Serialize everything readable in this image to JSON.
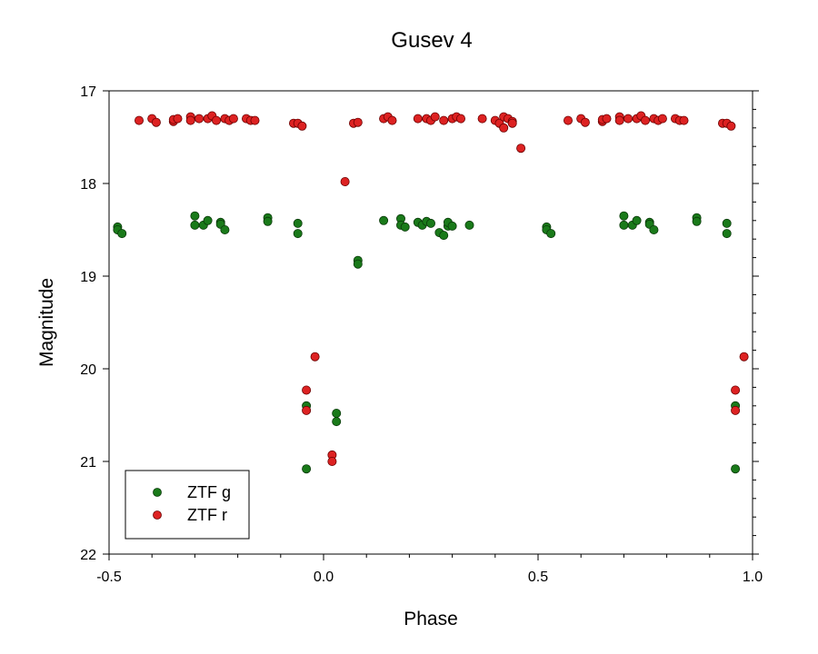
{
  "chart_data": {
    "type": "scatter",
    "title": "Gusev 4",
    "xlabel": "Phase",
    "ylabel": "Magnitude",
    "xlim": [
      -0.5,
      1.0
    ],
    "ylim": [
      22,
      17
    ],
    "y_inverted": true,
    "grid": false,
    "legend_position": "bottom-left",
    "x_ticks": [
      -0.5,
      0.0,
      0.5,
      1.0
    ],
    "x_tick_labels": [
      "-0.5",
      "0.0",
      "0.5",
      "1.0"
    ],
    "y_ticks": [
      17,
      18,
      19,
      20,
      21,
      22
    ],
    "y_tick_labels": [
      "17",
      "18",
      "19",
      "20",
      "21",
      "22"
    ],
    "series": [
      {
        "name": "ZTF g",
        "color": "#1a7a1a",
        "points": [
          [
            -0.48,
            18.47
          ],
          [
            -0.48,
            18.5
          ],
          [
            -0.47,
            18.54
          ],
          [
            -0.3,
            18.35
          ],
          [
            -0.3,
            18.45
          ],
          [
            -0.28,
            18.45
          ],
          [
            -0.27,
            18.4
          ],
          [
            -0.24,
            18.42
          ],
          [
            -0.24,
            18.44
          ],
          [
            -0.23,
            18.5
          ],
          [
            -0.13,
            18.37
          ],
          [
            -0.13,
            18.41
          ],
          [
            -0.06,
            18.43
          ],
          [
            -0.06,
            18.54
          ],
          [
            -0.04,
            20.4
          ],
          [
            -0.04,
            21.08
          ],
          [
            0.03,
            20.48
          ],
          [
            0.03,
            20.57
          ],
          [
            0.08,
            18.83
          ],
          [
            0.08,
            18.87
          ],
          [
            0.14,
            18.4
          ],
          [
            0.18,
            18.38
          ],
          [
            0.18,
            18.45
          ],
          [
            0.19,
            18.47
          ],
          [
            0.22,
            18.42
          ],
          [
            0.23,
            18.45
          ],
          [
            0.24,
            18.41
          ],
          [
            0.25,
            18.43
          ],
          [
            0.27,
            18.53
          ],
          [
            0.28,
            18.56
          ],
          [
            0.29,
            18.46
          ],
          [
            0.29,
            18.42
          ],
          [
            0.3,
            18.46
          ],
          [
            0.34,
            18.45
          ],
          [
            0.52,
            18.47
          ],
          [
            0.52,
            18.5
          ],
          [
            0.53,
            18.54
          ],
          [
            0.7,
            18.35
          ],
          [
            0.7,
            18.45
          ],
          [
            0.72,
            18.45
          ],
          [
            0.73,
            18.4
          ],
          [
            0.76,
            18.42
          ],
          [
            0.76,
            18.44
          ],
          [
            0.77,
            18.5
          ],
          [
            0.87,
            18.37
          ],
          [
            0.87,
            18.41
          ],
          [
            0.94,
            18.43
          ],
          [
            0.94,
            18.54
          ],
          [
            0.96,
            20.4
          ],
          [
            0.96,
            21.08
          ]
        ]
      },
      {
        "name": "ZTF r",
        "color": "#dd2222",
        "points": [
          [
            -0.43,
            17.32
          ],
          [
            -0.4,
            17.3
          ],
          [
            -0.39,
            17.34
          ],
          [
            -0.35,
            17.33
          ],
          [
            -0.35,
            17.31
          ],
          [
            -0.34,
            17.3
          ],
          [
            -0.31,
            17.28
          ],
          [
            -0.31,
            17.32
          ],
          [
            -0.29,
            17.3
          ],
          [
            -0.27,
            17.3
          ],
          [
            -0.26,
            17.27
          ],
          [
            -0.25,
            17.32
          ],
          [
            -0.23,
            17.3
          ],
          [
            -0.22,
            17.32
          ],
          [
            -0.21,
            17.3
          ],
          [
            -0.18,
            17.3
          ],
          [
            -0.17,
            17.32
          ],
          [
            -0.16,
            17.32
          ],
          [
            -0.07,
            17.35
          ],
          [
            -0.06,
            17.35
          ],
          [
            -0.05,
            17.38
          ],
          [
            -0.02,
            19.87
          ],
          [
            -0.04,
            20.23
          ],
          [
            -0.04,
            20.45
          ],
          [
            0.02,
            20.93
          ],
          [
            0.02,
            21.0
          ],
          [
            0.05,
            17.98
          ],
          [
            0.07,
            17.35
          ],
          [
            0.08,
            17.34
          ],
          [
            0.14,
            17.3
          ],
          [
            0.15,
            17.28
          ],
          [
            0.16,
            17.32
          ],
          [
            0.22,
            17.3
          ],
          [
            0.24,
            17.3
          ],
          [
            0.25,
            17.32
          ],
          [
            0.26,
            17.28
          ],
          [
            0.28,
            17.32
          ],
          [
            0.3,
            17.3
          ],
          [
            0.31,
            17.28
          ],
          [
            0.32,
            17.3
          ],
          [
            0.37,
            17.3
          ],
          [
            0.4,
            17.32
          ],
          [
            0.41,
            17.35
          ],
          [
            0.42,
            17.4
          ],
          [
            0.42,
            17.28
          ],
          [
            0.43,
            17.3
          ],
          [
            0.44,
            17.33
          ],
          [
            0.44,
            17.35
          ],
          [
            0.46,
            17.62
          ],
          [
            0.57,
            17.32
          ],
          [
            0.6,
            17.3
          ],
          [
            0.61,
            17.34
          ],
          [
            0.65,
            17.33
          ],
          [
            0.65,
            17.31
          ],
          [
            0.66,
            17.3
          ],
          [
            0.69,
            17.28
          ],
          [
            0.69,
            17.32
          ],
          [
            0.71,
            17.3
          ],
          [
            0.73,
            17.3
          ],
          [
            0.74,
            17.27
          ],
          [
            0.75,
            17.32
          ],
          [
            0.77,
            17.3
          ],
          [
            0.78,
            17.32
          ],
          [
            0.79,
            17.3
          ],
          [
            0.82,
            17.3
          ],
          [
            0.83,
            17.32
          ],
          [
            0.84,
            17.32
          ],
          [
            0.93,
            17.35
          ],
          [
            0.94,
            17.35
          ],
          [
            0.95,
            17.38
          ],
          [
            0.98,
            19.87
          ],
          [
            0.96,
            20.23
          ],
          [
            0.96,
            20.45
          ]
        ]
      }
    ]
  }
}
